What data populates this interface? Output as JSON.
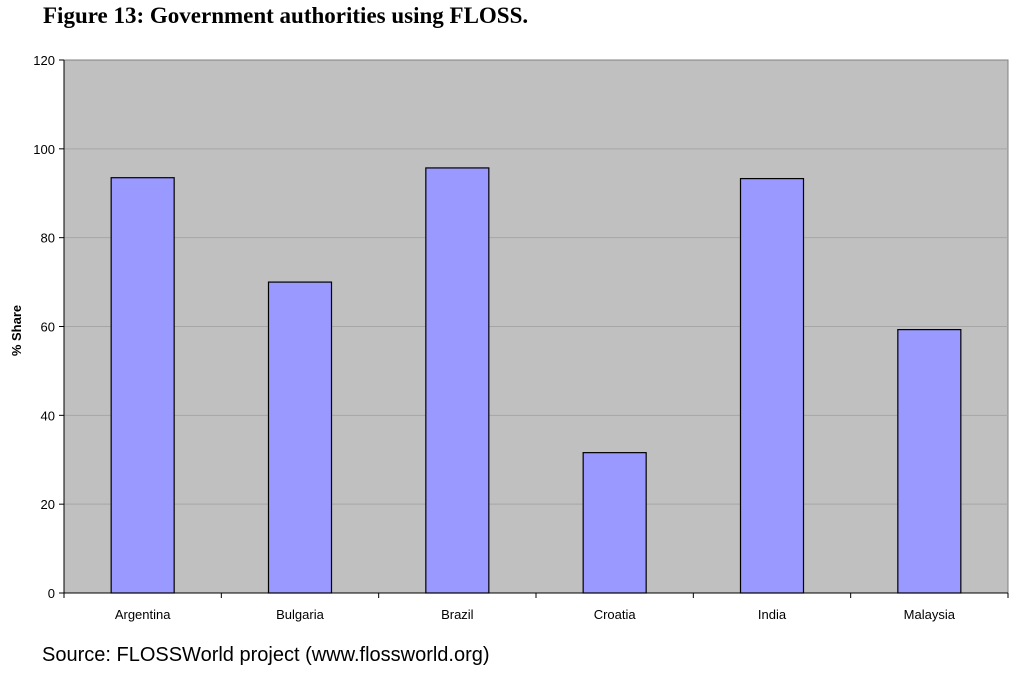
{
  "figure": {
    "title": "Figure 13: Government authorities using FLOSS.",
    "source": "Source: FLOSSWorld project (www.flossworld.org)"
  },
  "colors": {
    "plot_background": "#c0c0c0",
    "bar_fill": "#9999ff",
    "bar_stroke": "#000000",
    "gridline": "#a6a6a6"
  },
  "chart_data": {
    "type": "bar",
    "title": "",
    "xlabel": "",
    "ylabel": "% Share",
    "categories": [
      "Argentina",
      "Bulgaria",
      "Brazil",
      "Croatia",
      "India",
      "Malaysia"
    ],
    "values": [
      93.5,
      70,
      95.7,
      31.6,
      93.3,
      59.3
    ],
    "ylim": [
      0,
      120
    ],
    "yticks": [
      0,
      20,
      40,
      60,
      80,
      100,
      120
    ],
    "grid": true,
    "legend": "none"
  }
}
